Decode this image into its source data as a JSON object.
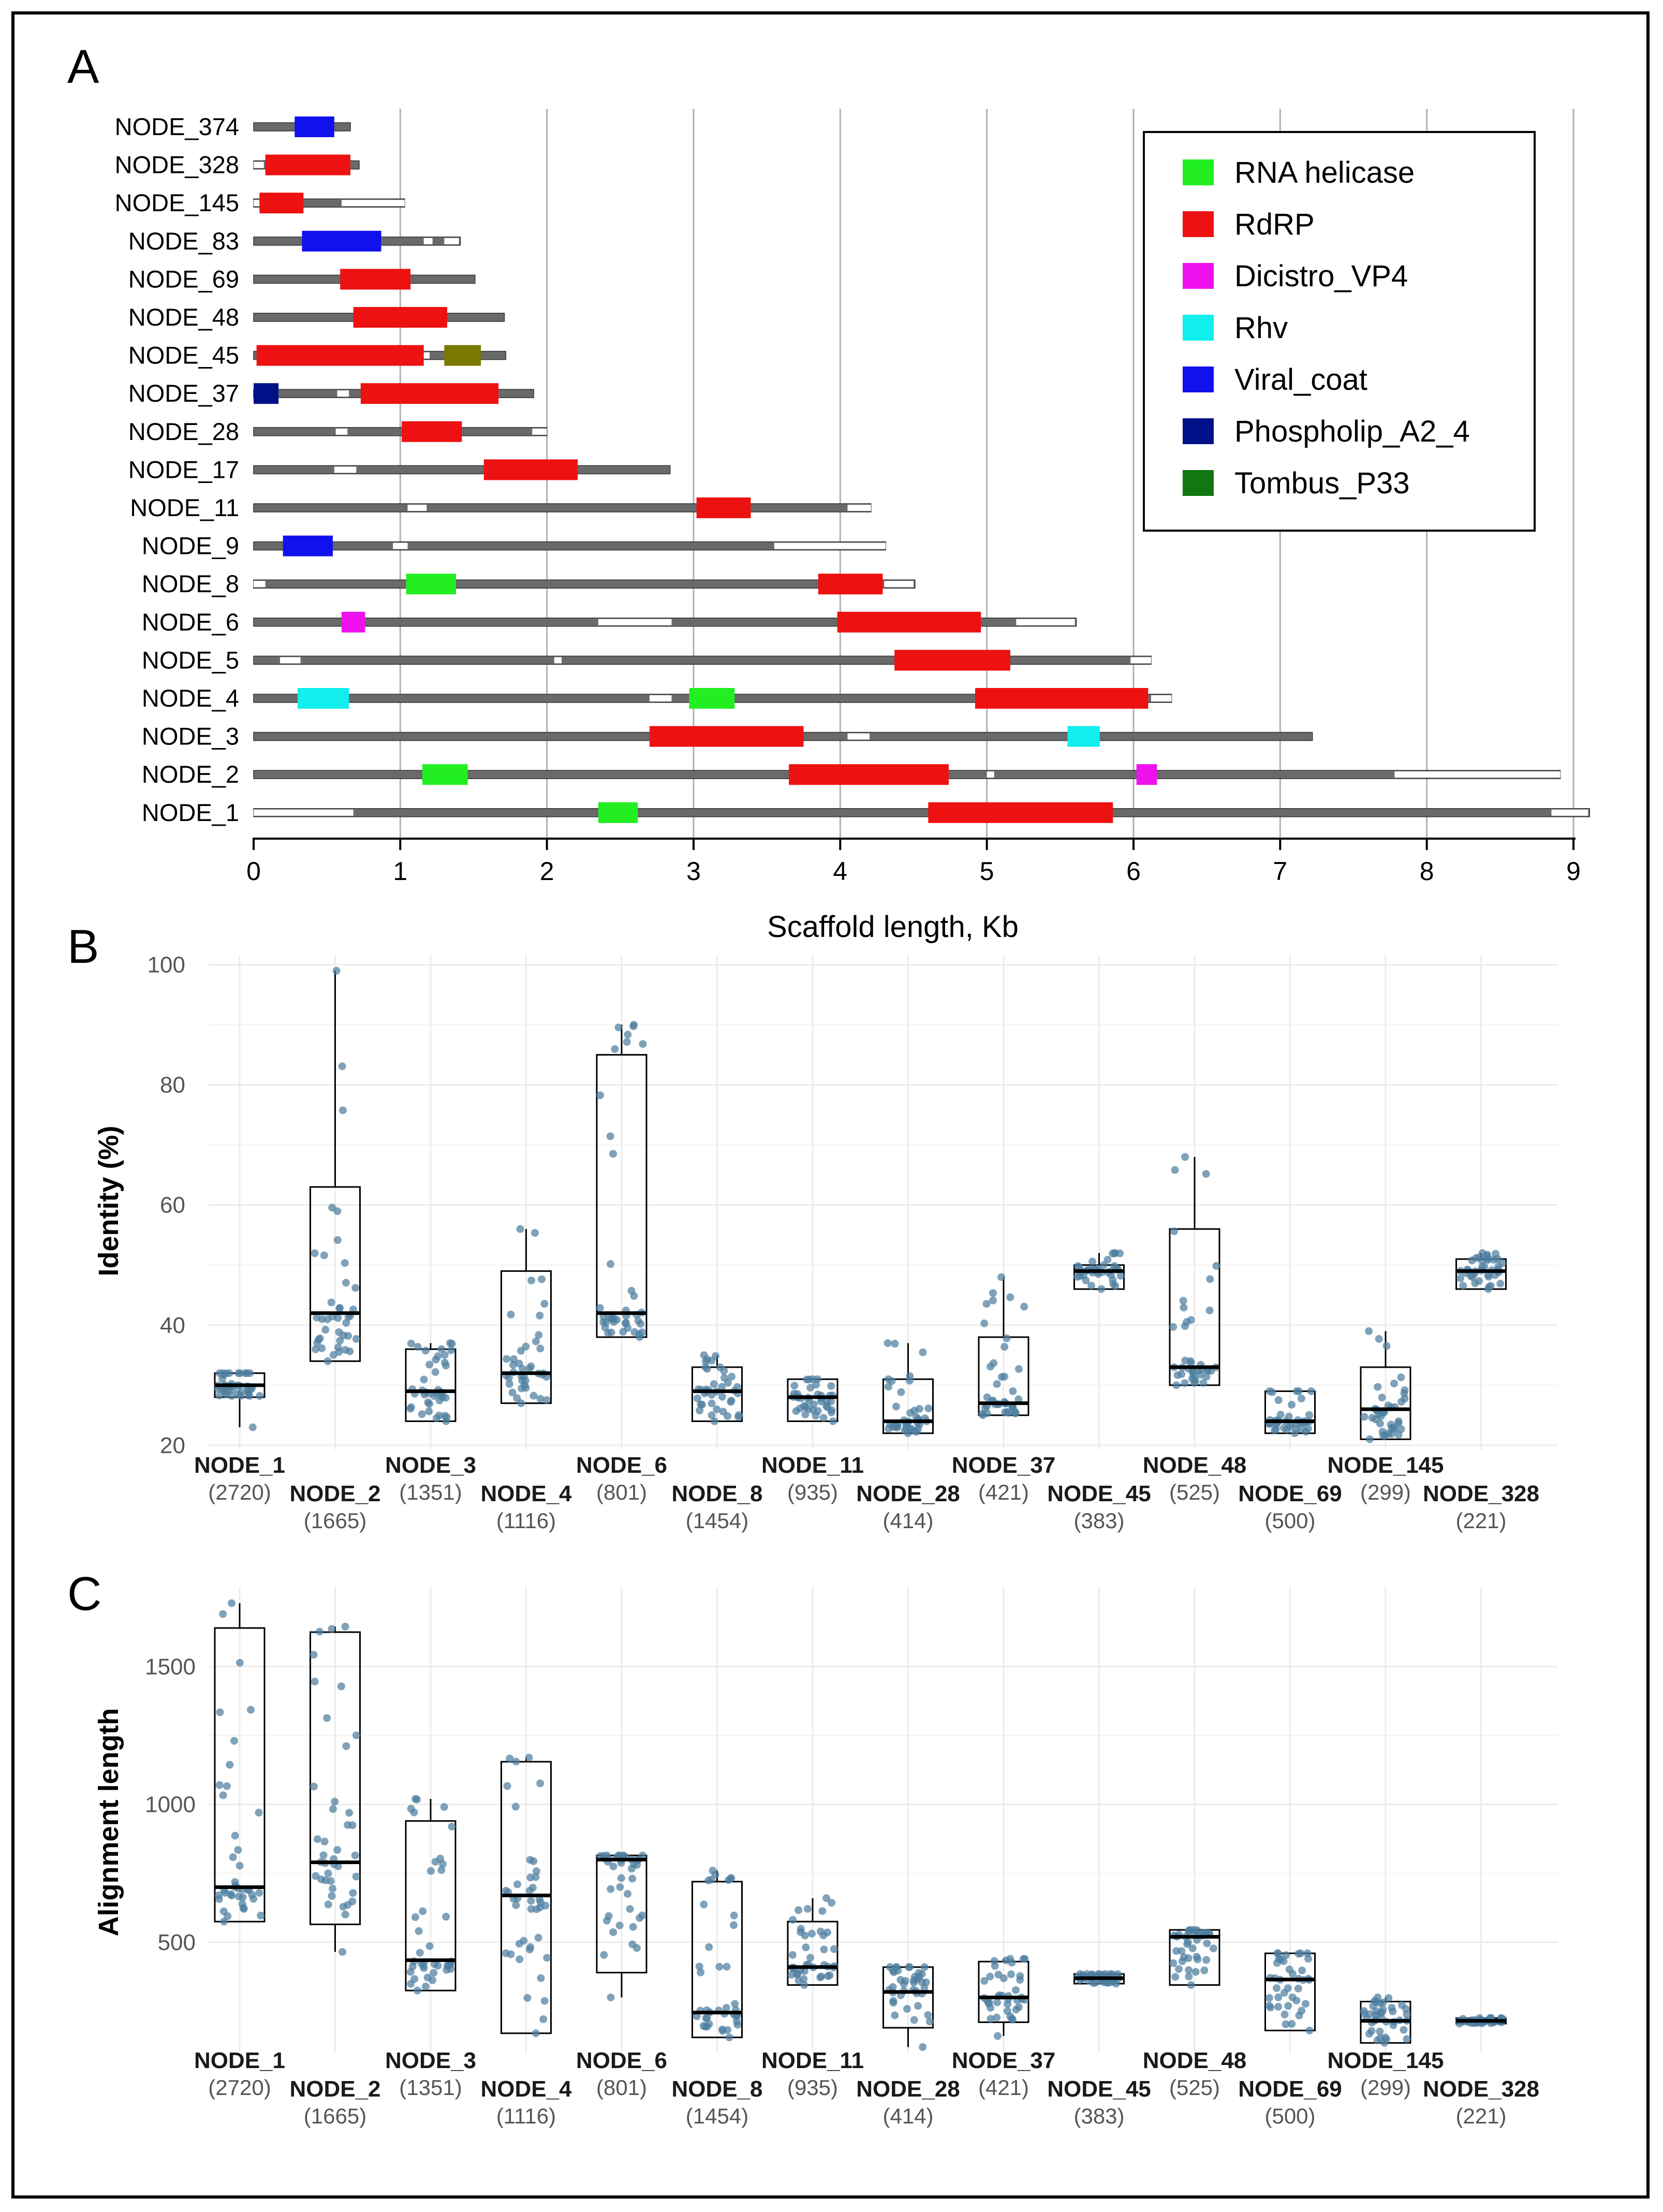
{
  "chart_data": [
    {
      "panel": "A",
      "type": "bar",
      "subtype": "genome-domain-map",
      "xlabel": "Scaffold length, Kb",
      "xlim": [
        0,
        9
      ],
      "xticks": [
        0,
        1,
        2,
        3,
        4,
        5,
        6,
        7,
        8,
        9
      ],
      "grid": true,
      "legend_position": "top-right",
      "legend": [
        {
          "name": "RNA helicase",
          "color": "#22ee22"
        },
        {
          "name": "RdRP",
          "color": "#ee1111"
        },
        {
          "name": "Dicistro_VP4",
          "color": "#ee11ee"
        },
        {
          "name": "Rhv",
          "color": "#11eeee"
        },
        {
          "name": "Viral_coat",
          "color": "#1111ee"
        },
        {
          "name": "Phospholip_A2_4",
          "color": "#001188"
        },
        {
          "name": "Tombus_P33",
          "color": "#117711"
        }
      ],
      "colors": {
        "scaffold": "#6a6a6a",
        "uncovered": "#ffffff",
        "olive": "#7a7a00",
        "grid": "#b0b0b0"
      },
      "scaffolds": [
        {
          "name": "NODE_374",
          "length": 0.66,
          "gaps": [],
          "domains": [
            {
              "type": "Viral_coat",
              "start": 0.28,
              "end": 0.55
            }
          ]
        },
        {
          "name": "NODE_328",
          "length": 0.72,
          "gaps": [
            [
              0.0,
              0.07
            ]
          ],
          "domains": [
            {
              "type": "RdRP",
              "start": 0.08,
              "end": 0.66
            }
          ]
        },
        {
          "name": "NODE_145",
          "length": 1.03,
          "gaps": [
            [
              0.0,
              0.04
            ],
            [
              0.6,
              1.03
            ]
          ],
          "domains": [
            {
              "type": "RdRP",
              "start": 0.04,
              "end": 0.34
            }
          ]
        },
        {
          "name": "NODE_83",
          "length": 1.41,
          "gaps": [
            [
              1.16,
              1.22
            ],
            [
              1.3,
              1.4
            ]
          ],
          "domains": [
            {
              "type": "Viral_coat",
              "start": 0.33,
              "end": 0.87
            }
          ]
        },
        {
          "name": "NODE_69",
          "length": 1.51,
          "gaps": [],
          "domains": [
            {
              "type": "RdRP",
              "start": 0.59,
              "end": 1.07
            }
          ]
        },
        {
          "name": "NODE_48",
          "length": 1.71,
          "gaps": [],
          "domains": [
            {
              "type": "RdRP",
              "start": 0.68,
              "end": 1.32
            }
          ]
        },
        {
          "name": "NODE_45",
          "length": 1.72,
          "gaps": [
            [
              1.16,
              1.2
            ]
          ],
          "domains": [
            {
              "type": "RdRP",
              "start": 0.02,
              "end": 1.16
            },
            {
              "type": "olive",
              "start": 1.3,
              "end": 1.55
            }
          ]
        },
        {
          "name": "NODE_37",
          "length": 1.91,
          "gaps": [
            [
              0.57,
              0.65
            ]
          ],
          "domains": [
            {
              "type": "Phospholip_A2_4",
              "start": 0.0,
              "end": 0.17
            },
            {
              "type": "RdRP",
              "start": 0.73,
              "end": 1.67
            }
          ]
        },
        {
          "name": "NODE_28",
          "length": 2.0,
          "gaps": [
            [
              0.56,
              0.64
            ],
            [
              1.9,
              2.0
            ]
          ],
          "domains": [
            {
              "type": "RdRP",
              "start": 1.01,
              "end": 1.42
            }
          ]
        },
        {
          "name": "NODE_17",
          "length": 2.84,
          "gaps": [
            [
              0.55,
              0.7
            ]
          ],
          "domains": [
            {
              "type": "RdRP",
              "start": 1.57,
              "end": 2.21
            }
          ]
        },
        {
          "name": "NODE_11",
          "length": 4.21,
          "gaps": [
            [
              1.05,
              1.18
            ],
            [
              4.05,
              4.21
            ]
          ],
          "domains": [
            {
              "type": "RdRP",
              "start": 3.02,
              "end": 3.39
            }
          ]
        },
        {
          "name": "NODE_9",
          "length": 4.31,
          "gaps": [
            [
              0.95,
              1.05
            ],
            [
              3.55,
              4.31
            ]
          ],
          "domains": [
            {
              "type": "Viral_coat",
              "start": 0.2,
              "end": 0.54
            }
          ]
        },
        {
          "name": "NODE_8",
          "length": 4.51,
          "gaps": [
            [
              0.0,
              0.08
            ],
            [
              4.3,
              4.5
            ]
          ],
          "domains": [
            {
              "type": "RNA helicase",
              "start": 1.04,
              "end": 1.38
            },
            {
              "type": "RdRP",
              "start": 3.85,
              "end": 4.29
            }
          ]
        },
        {
          "name": "NODE_6",
          "length": 5.61,
          "gaps": [
            [
              2.35,
              2.85
            ],
            [
              5.2,
              5.6
            ]
          ],
          "domains": [
            {
              "type": "Dicistro_VP4",
              "start": 0.6,
              "end": 0.76
            },
            {
              "type": "RdRP",
              "start": 3.98,
              "end": 4.96
            }
          ]
        },
        {
          "name": "NODE_5",
          "length": 6.12,
          "gaps": [
            [
              0.18,
              0.32
            ],
            [
              2.05,
              2.1
            ],
            [
              5.98,
              6.12
            ]
          ],
          "domains": [
            {
              "type": "RdRP",
              "start": 4.37,
              "end": 5.16
            }
          ]
        },
        {
          "name": "NODE_4",
          "length": 6.26,
          "gaps": [
            [
              2.7,
              2.85
            ],
            [
              6.12,
              6.26
            ]
          ],
          "domains": [
            {
              "type": "Rhv",
              "start": 0.3,
              "end": 0.65
            },
            {
              "type": "RNA helicase",
              "start": 2.97,
              "end": 3.28
            },
            {
              "type": "RdRP",
              "start": 4.92,
              "end": 6.1
            }
          ]
        },
        {
          "name": "NODE_3",
          "length": 7.22,
          "gaps": [
            [
              4.05,
              4.2
            ]
          ],
          "domains": [
            {
              "type": "RdRP",
              "start": 2.7,
              "end": 3.75
            },
            {
              "type": "Rhv",
              "start": 5.55,
              "end": 5.77
            }
          ]
        },
        {
          "name": "NODE_2",
          "length": 8.91,
          "gaps": [
            [
              5.0,
              5.05
            ],
            [
              7.78,
              8.91
            ]
          ],
          "domains": [
            {
              "type": "RNA helicase",
              "start": 1.15,
              "end": 1.46
            },
            {
              "type": "RdRP",
              "start": 3.65,
              "end": 4.74
            },
            {
              "type": "Dicistro_VP4",
              "start": 6.02,
              "end": 6.16
            }
          ]
        },
        {
          "name": "NODE_1",
          "length": 9.11,
          "gaps": [
            [
              0.0,
              0.68
            ],
            [
              8.85,
              9.1
            ]
          ],
          "domains": [
            {
              "type": "RNA helicase",
              "start": 2.35,
              "end": 2.62
            },
            {
              "type": "RdRP",
              "start": 4.6,
              "end": 5.86
            }
          ]
        }
      ]
    },
    {
      "panel": "B",
      "type": "box",
      "ylabel": "Identity (%)",
      "xlabel": "",
      "ylim": [
        19.3,
        101.6
      ],
      "yticks": [
        20,
        40,
        60,
        80,
        100
      ],
      "grid": true,
      "box_color": "#000000",
      "point_color": "#4d7ea0",
      "groups": [
        {
          "label": "NODE_1",
          "count": "(2720)",
          "min": 23,
          "q1": 28,
          "median": 30,
          "q3": 32,
          "max": 32
        },
        {
          "label": "NODE_2",
          "count": "(1665)",
          "min": 34,
          "q1": 34,
          "median": 42,
          "q3": 63,
          "max": 99
        },
        {
          "label": "NODE_3",
          "count": "(1351)",
          "min": 24,
          "q1": 24,
          "median": 29,
          "q3": 36,
          "max": 37
        },
        {
          "label": "NODE_4",
          "count": "(1116)",
          "min": 27,
          "q1": 27,
          "median": 32,
          "q3": 49,
          "max": 56
        },
        {
          "label": "NODE_6",
          "count": "(801)",
          "min": 38,
          "q1": 38,
          "median": 42,
          "q3": 85,
          "max": 90
        },
        {
          "label": "NODE_8",
          "count": "(1454)",
          "min": 24,
          "q1": 24,
          "median": 29,
          "q3": 33,
          "max": 35
        },
        {
          "label": "NODE_11",
          "count": "(935)",
          "min": 24,
          "q1": 24,
          "median": 28,
          "q3": 31,
          "max": 31
        },
        {
          "label": "NODE_28",
          "count": "(414)",
          "min": 22,
          "q1": 22,
          "median": 24,
          "q3": 31,
          "max": 37
        },
        {
          "label": "NODE_37",
          "count": "(421)",
          "min": 25,
          "q1": 25,
          "median": 27,
          "q3": 38,
          "max": 48
        },
        {
          "label": "NODE_45",
          "count": "(383)",
          "min": 46,
          "q1": 46,
          "median": 49,
          "q3": 50,
          "max": 52
        },
        {
          "label": "NODE_48",
          "count": "(525)",
          "min": 30,
          "q1": 30,
          "median": 33,
          "q3": 56,
          "max": 68
        },
        {
          "label": "NODE_69",
          "count": "(500)",
          "min": 22,
          "q1": 22,
          "median": 24,
          "q3": 29,
          "max": 29
        },
        {
          "label": "NODE_145",
          "count": "(299)",
          "min": 21,
          "q1": 21,
          "median": 26,
          "q3": 33,
          "max": 39
        },
        {
          "label": "NODE_328",
          "count": "(221)",
          "min": 46,
          "q1": 46,
          "median": 49,
          "q3": 51,
          "max": 52
        }
      ]
    },
    {
      "panel": "C",
      "type": "box",
      "ylabel": "Alignment length",
      "xlabel": "",
      "ylim": [
        100,
        1790
      ],
      "yticks": [
        500,
        1000,
        1500
      ],
      "grid": true,
      "box_color": "#000000",
      "point_color": "#4d7ea0",
      "groups": [
        {
          "label": "NODE_1",
          "count": "(2720)",
          "min": 575,
          "q1": 575,
          "median": 700,
          "q3": 1640,
          "max": 1730
        },
        {
          "label": "NODE_2",
          "count": "(1665)",
          "min": 465,
          "q1": 565,
          "median": 790,
          "q3": 1625,
          "max": 1645
        },
        {
          "label": "NODE_3",
          "count": "(1351)",
          "min": 325,
          "q1": 325,
          "median": 435,
          "q3": 940,
          "max": 1020
        },
        {
          "label": "NODE_4",
          "count": "(1116)",
          "min": 170,
          "q1": 170,
          "median": 670,
          "q3": 1155,
          "max": 1170
        },
        {
          "label": "NODE_6",
          "count": "(801)",
          "min": 300,
          "q1": 390,
          "median": 800,
          "q3": 815,
          "max": 815
        },
        {
          "label": "NODE_8",
          "count": "(1454)",
          "min": 155,
          "q1": 155,
          "median": 245,
          "q3": 720,
          "max": 760
        },
        {
          "label": "NODE_11",
          "count": "(935)",
          "min": 345,
          "q1": 345,
          "median": 410,
          "q3": 575,
          "max": 660
        },
        {
          "label": "NODE_28",
          "count": "(414)",
          "min": 120,
          "q1": 190,
          "median": 320,
          "q3": 410,
          "max": 410
        },
        {
          "label": "NODE_37",
          "count": "(421)",
          "min": 160,
          "q1": 210,
          "median": 300,
          "q3": 430,
          "max": 440
        },
        {
          "label": "NODE_45",
          "count": "(383)",
          "min": 350,
          "q1": 350,
          "median": 370,
          "q3": 385,
          "max": 385
        },
        {
          "label": "NODE_48",
          "count": "(525)",
          "min": 345,
          "q1": 345,
          "median": 520,
          "q3": 545,
          "max": 545
        },
        {
          "label": "NODE_69",
          "count": "(500)",
          "min": 180,
          "q1": 180,
          "median": 365,
          "q3": 460,
          "max": 460
        },
        {
          "label": "NODE_145",
          "count": "(299)",
          "min": 135,
          "q1": 135,
          "median": 215,
          "q3": 285,
          "max": 300
        },
        {
          "label": "NODE_328",
          "count": "(221)",
          "min": 205,
          "q1": 205,
          "median": 215,
          "q3": 225,
          "max": 225
        }
      ]
    }
  ],
  "panel_letters": [
    "A",
    "B",
    "C"
  ]
}
